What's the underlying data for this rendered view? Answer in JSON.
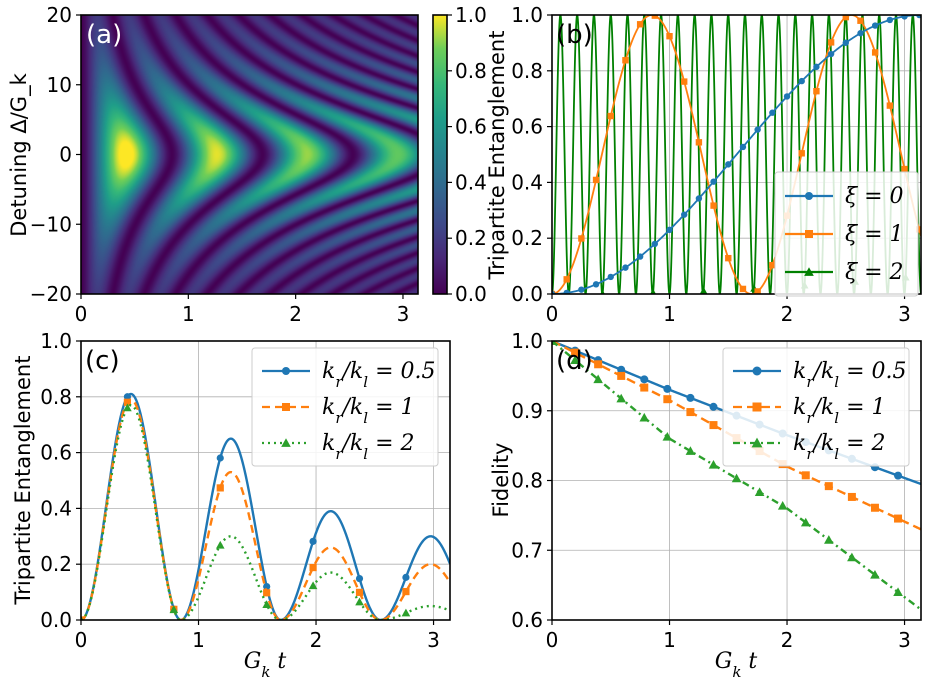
{
  "chart_data": [
    {
      "panel": "(a)",
      "type": "heatmap",
      "title": "",
      "xlabel": "",
      "ylabel": "Detuning Δ/G_k",
      "xlim": [
        0,
        3.14
      ],
      "ylim": [
        -20,
        20
      ],
      "x_ticks": [
        "0",
        "1",
        "2",
        "3"
      ],
      "y_ticks": [
        "20",
        "10",
        "0",
        "−10",
        "−20"
      ],
      "colorbar": {
        "range": [
          0,
          1
        ],
        "ticks": [
          "1.0",
          "0.8",
          "0.6",
          "0.4",
          "0.2",
          "0.0"
        ],
        "colormap": "viridis"
      },
      "description": "Tripartite entanglement vs G_k t and detuning; chevron fringes, maxima near detuning 0 at G_k t ≈ 0.4, 1.25, 2.1, 2.95"
    },
    {
      "panel": "(b)",
      "type": "line",
      "xlabel": "",
      "ylabel": "Tripartite Entanglement",
      "xlim": [
        0,
        3.14
      ],
      "ylim": [
        0,
        1.0
      ],
      "x_ticks": [
        "0",
        "1",
        "2",
        "3"
      ],
      "y_ticks": [
        "0.0",
        "0.2",
        "0.4",
        "0.6",
        "0.8",
        "1.0"
      ],
      "series": [
        {
          "name": "ξ = 0",
          "color": "#1f77b4",
          "marker": "circle",
          "model": "sin^2(t/2)"
        },
        {
          "name": "ξ = 1",
          "color": "#ff7f0e",
          "marker": "square",
          "model": "sin^2(1.85 t)"
        },
        {
          "name": "ξ = 2",
          "color": "#008000",
          "marker": "triangle",
          "model": "sin^2(22 t)"
        }
      ],
      "legend_labels": [
        "ξ = 0",
        "ξ = 1",
        "ξ = 2"
      ],
      "legend_position": "lower-right"
    },
    {
      "panel": "(c)",
      "type": "line",
      "xlabel": "G_k t",
      "ylabel": "Tripartite Entanglement",
      "xlim": [
        0,
        3.14
      ],
      "ylim": [
        0,
        1.0
      ],
      "x_ticks": [
        "0",
        "1",
        "2",
        "3"
      ],
      "y_ticks": [
        "0.0",
        "0.2",
        "0.4",
        "0.6",
        "0.8",
        "1.0"
      ],
      "peak_t": [
        0.4,
        1.25,
        2.1,
        2.95
      ],
      "series": [
        {
          "name": "k_r/k_l = 0.5",
          "color": "#1f77b4",
          "style": "solid",
          "marker": "circle",
          "peaks": [
            0.81,
            0.65,
            0.39,
            0.3
          ]
        },
        {
          "name": "k_r/k_l = 1",
          "color": "#ff7f0e",
          "style": "dashed",
          "marker": "square",
          "peaks": [
            0.79,
            0.53,
            0.26,
            0.2
          ]
        },
        {
          "name": "k_r/k_l = 2",
          "color": "#2ca02c",
          "style": "dotted",
          "marker": "triangle",
          "peaks": [
            0.77,
            0.3,
            0.17,
            0.05
          ]
        }
      ],
      "legend_labels": [
        "k_r/k_l = 0.5",
        "k_r/k_l = 1",
        "k_r/k_l = 2"
      ],
      "legend_position": "upper-right"
    },
    {
      "panel": "(d)",
      "type": "line",
      "xlabel": "G_k t",
      "ylabel": "Fidelity",
      "xlim": [
        0,
        3.14
      ],
      "ylim": [
        0.6,
        1.0
      ],
      "x_ticks": [
        "0",
        "1",
        "2",
        "3"
      ],
      "y_ticks": [
        "0.6",
        "0.7",
        "0.8",
        "0.9",
        "1.0"
      ],
      "series": [
        {
          "name": "k_r/k_l = 0.5",
          "color": "#1f77b4",
          "style": "solid",
          "marker": "circle",
          "x": [
            0,
            1.0,
            2.0,
            3.14
          ],
          "values": [
            1.0,
            0.93,
            0.865,
            0.795
          ]
        },
        {
          "name": "k_r/k_l = 1",
          "color": "#ff7f0e",
          "style": "dashed",
          "marker": "square",
          "x": [
            0,
            1.0,
            2.0,
            3.14
          ],
          "values": [
            1.0,
            0.915,
            0.82,
            0.73
          ]
        },
        {
          "name": "k_r/k_l = 2",
          "color": "#2ca02c",
          "style": "dashdot",
          "marker": "triangle",
          "x": [
            0,
            1.0,
            2.0,
            3.14
          ],
          "values": [
            1.0,
            0.86,
            0.76,
            0.615
          ]
        }
      ],
      "legend_labels": [
        "k_r/k_l = 0.5",
        "k_r/k_l = 1",
        "k_r/k_l = 2"
      ],
      "legend_position": "upper-right"
    }
  ]
}
